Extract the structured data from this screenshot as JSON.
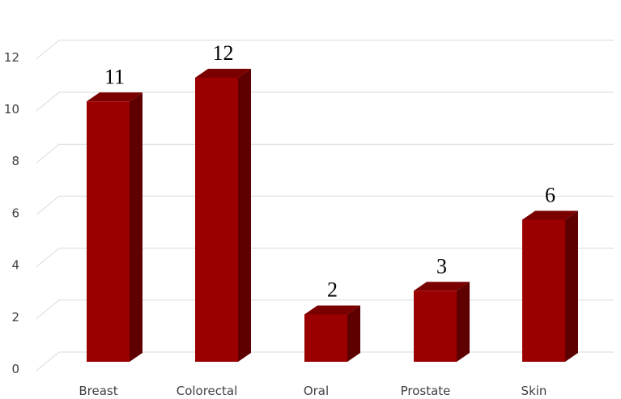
{
  "chart_data": {
    "type": "bar",
    "categories": [
      "Breast",
      "Colorectal",
      "Oral",
      "Prostate",
      "Skin"
    ],
    "values": [
      11,
      12,
      2,
      3,
      6
    ],
    "title": "",
    "xlabel": "",
    "ylabel": "",
    "ylim": [
      0,
      12
    ],
    "yticks": [
      "0",
      "2",
      "4",
      "6",
      "8",
      "10",
      "12"
    ],
    "data_labels": [
      "11",
      "12",
      "2",
      "3",
      "6"
    ],
    "grid": true,
    "legend": "none",
    "style": "3d-column",
    "colors": {
      "bar_front": "#9b0000",
      "bar_side": "#5e0000",
      "bar_top": "#7a0000",
      "grid": "#d9d9d9",
      "axis_text": "#404040",
      "data_label": "#000000"
    }
  }
}
